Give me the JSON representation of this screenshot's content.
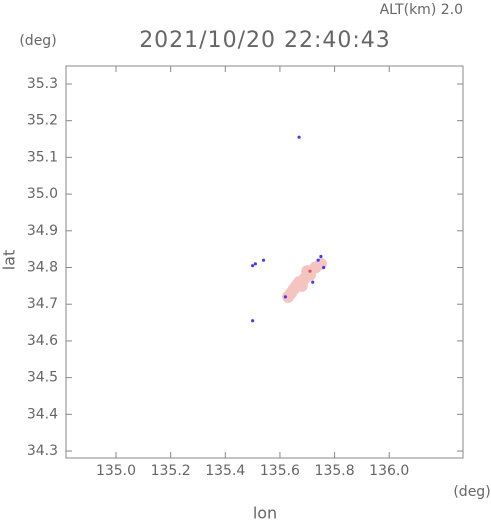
{
  "chart_data": {
    "type": "scatter",
    "title": "2021/10/20 22:40:43",
    "subtitle": "ALT(km) 2.0",
    "x_label": "lon",
    "y_label": "lat",
    "x_unit": "(deg)",
    "y_unit": "(deg)",
    "xlim": [
      134.817,
      136.27
    ],
    "ylim": [
      34.281,
      35.349
    ],
    "xticks": [
      {
        "value": 135.0,
        "label": "135.0"
      },
      135.2,
      135.4,
      135.6,
      135.8,
      {
        "value": 136.0,
        "label": "136.0"
      }
    ],
    "yticks": [
      34.3,
      34.4,
      34.5,
      34.6,
      34.7,
      34.8,
      34.9,
      {
        "value": 35.0,
        "label": "35.0"
      },
      35.1,
      35.2,
      35.3
    ],
    "series": [
      {
        "color": "#f4c4c0",
        "x": [
          135.63,
          135.64,
          135.65,
          135.66,
          135.67,
          135.68,
          135.69,
          135.7,
          135.71,
          135.73,
          135.75
        ],
        "y": [
          34.72,
          34.73,
          34.74,
          34.75,
          34.76,
          34.75,
          34.77,
          34.79,
          34.78,
          34.8,
          34.81
        ]
      },
      {
        "color": "#4a3ce0",
        "x": [
          135.67,
          135.5,
          135.51,
          135.5,
          135.54,
          135.75,
          135.74,
          135.62,
          135.76,
          135.72
        ],
        "y": [
          35.155,
          34.805,
          34.81,
          34.655,
          34.82,
          34.83,
          34.82,
          34.72,
          34.8,
          34.76
        ]
      },
      {
        "color": "#e05050",
        "x": [
          135.71
        ],
        "y": [
          34.79
        ]
      }
    ]
  }
}
